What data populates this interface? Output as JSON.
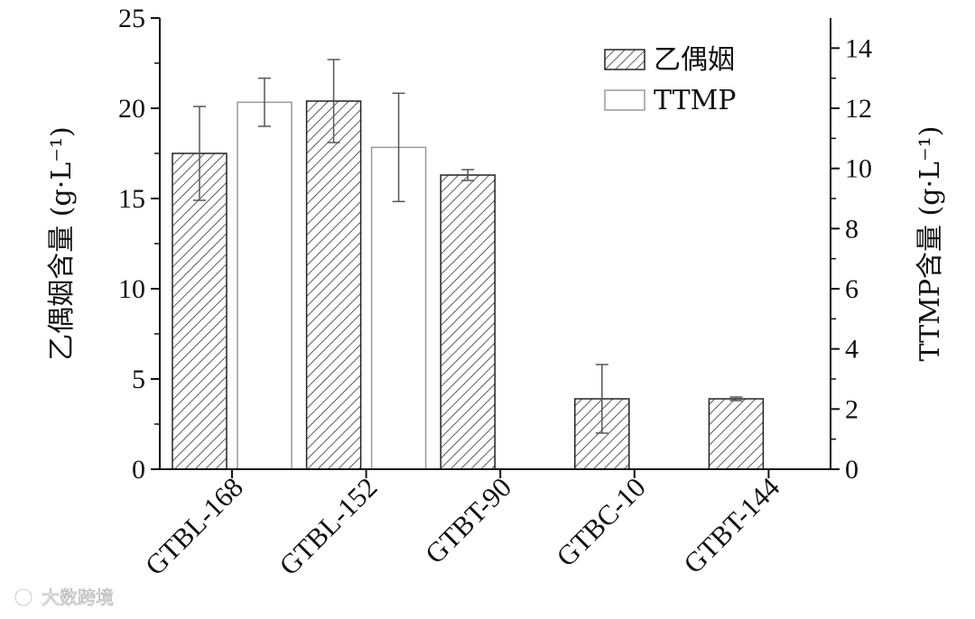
{
  "chart_data": {
    "type": "bar",
    "categories": [
      "GTBL-168",
      "GTBL-152",
      "GTBT-90",
      "GTBC-10",
      "GTBT-144"
    ],
    "series": [
      {
        "name": "乙偶姻",
        "axis": "left",
        "values": [
          17.5,
          20.4,
          16.3,
          3.9,
          3.9
        ],
        "errors": [
          2.6,
          2.3,
          0.3,
          1.9,
          0.1
        ],
        "pattern": "diagonal-hatch"
      },
      {
        "name": "TTMP",
        "axis": "right",
        "values": [
          12.2,
          10.7,
          null,
          null,
          null
        ],
        "errors": [
          0.8,
          1.8,
          null,
          null,
          null
        ],
        "pattern": "none"
      }
    ],
    "ylabel": "乙偶姻含量 (g·L⁻¹)",
    "y2label": "TTMP含量 (g·L⁻¹)",
    "ylim": [
      0,
      25
    ],
    "y2lim": [
      0,
      15
    ],
    "yticks": [
      "0",
      "5",
      "10",
      "15",
      "20",
      "25"
    ],
    "y2ticks": [
      "0",
      "2",
      "4",
      "6",
      "8",
      "10",
      "12",
      "14"
    ],
    "legend_placement": "top-right",
    "grid": false
  },
  "watermark": "大数跨境",
  "colors": {
    "axis": "#111111",
    "bar_edge": "#222222",
    "bar_fill": "#ffffff",
    "open_bar_edge": "#9a9a9a"
  }
}
